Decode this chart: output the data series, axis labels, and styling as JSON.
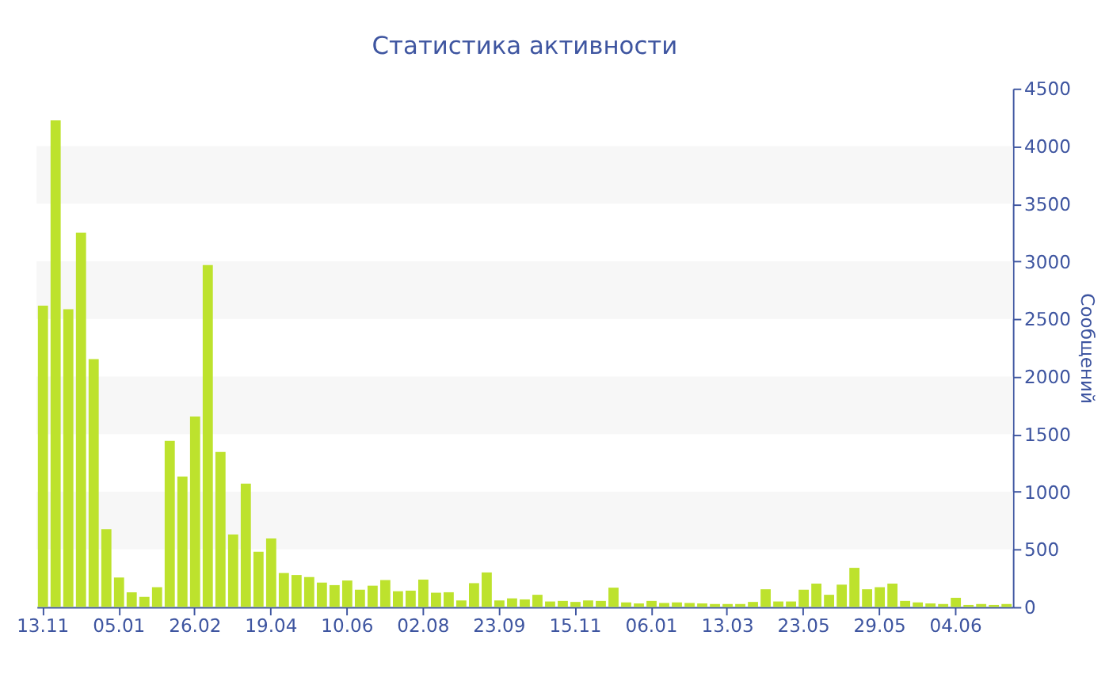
{
  "chart_data": {
    "type": "bar",
    "title": "Статистика активности",
    "ylabel": "Сообщений",
    "categories": [
      "13.11",
      null,
      null,
      null,
      null,
      null,
      "05.01",
      null,
      null,
      null,
      null,
      null,
      "26.02",
      null,
      null,
      null,
      null,
      null,
      "19.04",
      null,
      null,
      null,
      null,
      null,
      "10.06",
      null,
      null,
      null,
      null,
      null,
      "02.08",
      null,
      null,
      null,
      null,
      null,
      "23.09",
      null,
      null,
      null,
      null,
      null,
      "15.11",
      null,
      null,
      null,
      null,
      null,
      "06.01",
      null,
      null,
      null,
      null,
      null,
      "13.03",
      null,
      null,
      null,
      null,
      null,
      "23.05",
      null,
      null,
      null,
      null,
      null,
      "29.05",
      null,
      null,
      null,
      null,
      null,
      "04.06",
      null,
      null,
      null,
      null
    ],
    "values": [
      2615,
      4224,
      2584,
      3250,
      2152,
      675,
      256,
      128,
      88,
      172,
      1442,
      1133,
      1653,
      2967,
      1345,
      630,
      1071,
      480,
      595,
      295,
      278,
      260,
      212,
      190,
      230,
      150,
      185,
      234,
      137,
      142,
      238,
      124,
      128,
      57,
      207,
      300,
      57,
      75,
      66,
      106,
      48,
      53,
      44,
      57,
      53,
      168,
      40,
      31,
      53,
      35,
      40,
      35,
      31,
      26,
      26,
      26,
      44,
      154,
      48,
      48,
      150,
      203,
      106,
      194,
      340,
      154,
      172,
      203,
      53,
      40,
      31,
      26,
      80,
      18,
      26,
      18,
      26
    ],
    "color": "#bde22d",
    "ylim": [
      0,
      4500
    ],
    "yticks": [
      0,
      500,
      1000,
      1500,
      2000,
      2500,
      3000,
      3500,
      4000,
      4500
    ],
    "bands": [
      {
        "axis": "y",
        "from": 500,
        "to": 1000,
        "color": "#f7f7f7"
      },
      {
        "axis": "y",
        "from": 1500,
        "to": 2000,
        "color": "#f7f7f7"
      },
      {
        "axis": "y",
        "from": 2500,
        "to": 3000,
        "color": "#f7f7f7"
      },
      {
        "axis": "y",
        "from": 3500,
        "to": 4000,
        "color": "#f7f7f7"
      }
    ]
  }
}
